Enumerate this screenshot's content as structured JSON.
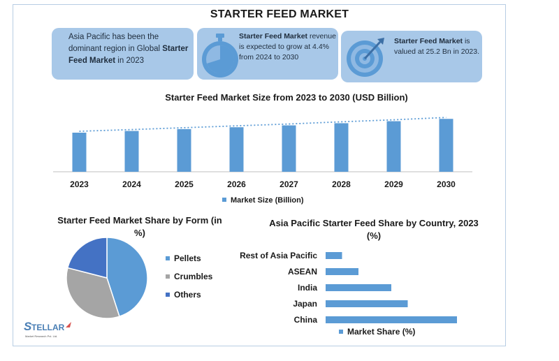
{
  "header": {
    "title": "STARTER FEED MARKET"
  },
  "cards": [
    {
      "pre": "Asia Pacific has been the dominant region in Global ",
      "bold": "Starter Feed Market",
      "post": " in 2023",
      "icon": "none"
    },
    {
      "bold": "Starter Feed Market",
      "post": " revenue is expected to grow at 4.4% from 2024 to 2030",
      "icon": "stopwatch-icon"
    },
    {
      "bold": "Starter Feed Market",
      "post": " is valued at 25.2 Bn in 2023.",
      "icon": "target-icon"
    }
  ],
  "colors": {
    "bar": "#5b9bd5",
    "card": "#a8c8e8",
    "pellets": "#5b9bd5",
    "crumbles": "#a5a5a5",
    "others": "#4472c4",
    "trend": "#5b9bd5"
  },
  "chart_data": [
    {
      "type": "bar",
      "title": "Starter Feed Market Size from 2023 to 2030 (USD Billion)",
      "categories": [
        "2023",
        "2024",
        "2025",
        "2026",
        "2027",
        "2028",
        "2029",
        "2030"
      ],
      "series": [
        {
          "name": "Market Size (Billion)",
          "values": [
            25.2,
            26.3,
            27.5,
            28.7,
            29.9,
            31.3,
            32.6,
            34.1
          ]
        }
      ],
      "trendline": true,
      "legend_position": "bottom",
      "grid": false
    },
    {
      "type": "pie",
      "title": "Starter Feed Market Share by Form (in %)",
      "labels": [
        "Pellets",
        "Crumbles",
        "Others"
      ],
      "values": [
        45,
        34,
        21
      ],
      "legend_position": "right"
    },
    {
      "type": "bar",
      "orientation": "horizontal",
      "title": "Asia Pacific Starter Feed Share by Country, 2023 (%)",
      "categories": [
        "Rest of Asia Pacific",
        "ASEAN",
        "India",
        "Japan",
        "China"
      ],
      "series": [
        {
          "name": "Market Share (%)",
          "values": [
            5,
            10,
            20,
            25,
            40
          ]
        }
      ],
      "legend_position": "bottom",
      "grid": false
    }
  ],
  "logo": {
    "text": "STELLAR",
    "subtext": "Market Research Pvt. Ltd."
  }
}
